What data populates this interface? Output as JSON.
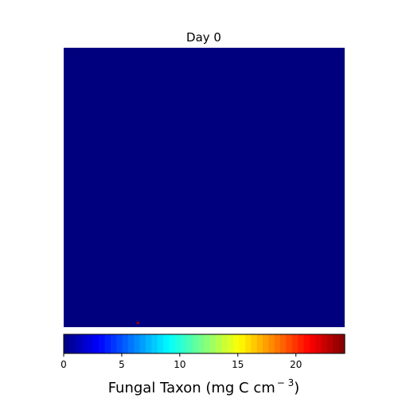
{
  "chart_data": {
    "type": "heatmap",
    "title": "Day 0",
    "background_value": 0,
    "hotspots": [
      {
        "row": 0.985,
        "col": 0.264,
        "value": 22
      }
    ],
    "colormap": "jet",
    "colors": {
      "background_cell": "#00007f",
      "hotspot_cell": "#a00000"
    },
    "colorbar": {
      "label_main": "Fungal Taxon (mg C cm",
      "label_exp": "− 3",
      "label_close": ")",
      "vmin": 0,
      "vmax": 24.2,
      "ticks": [
        {
          "value": 0,
          "label": "0"
        },
        {
          "value": 5,
          "label": "5"
        },
        {
          "value": 10,
          "label": "10"
        },
        {
          "value": 15,
          "label": "15"
        },
        {
          "value": 20,
          "label": "20"
        }
      ],
      "segments": 48
    }
  }
}
